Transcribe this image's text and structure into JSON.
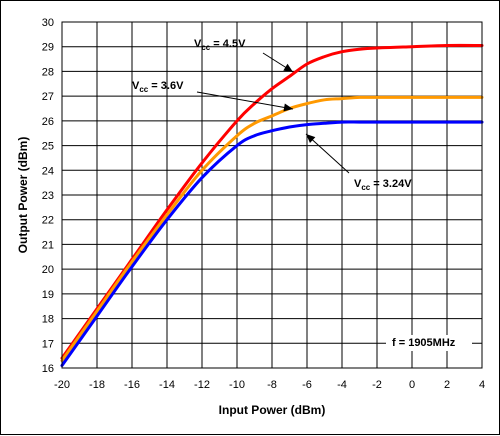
{
  "chart_data": {
    "type": "line",
    "xlabel": "Input Power (dBm)",
    "ylabel": "Output Power (dBm)",
    "xlim": [
      -20,
      4
    ],
    "ylim": [
      16,
      30
    ],
    "xticks": [
      -20,
      -18,
      -16,
      -14,
      -12,
      -10,
      -8,
      -6,
      -4,
      -2,
      0,
      2,
      4
    ],
    "yticks": [
      16,
      17,
      18,
      19,
      20,
      21,
      22,
      23,
      24,
      25,
      26,
      27,
      28,
      29,
      30
    ],
    "grid": true,
    "legend": "none",
    "series": [
      {
        "name_main": "V",
        "name_sub": "cc",
        "name_value": " = 4.5V",
        "color": "#ff0000",
        "x": [
          -20,
          -18,
          -16,
          -14,
          -12,
          -10,
          -9,
          -8,
          -7,
          -6,
          -5,
          -4,
          -3,
          -2,
          0,
          2,
          4
        ],
        "y": [
          16.4,
          18.4,
          20.4,
          22.4,
          24.3,
          26.0,
          26.7,
          27.3,
          27.8,
          28.3,
          28.6,
          28.8,
          28.9,
          28.95,
          29.0,
          29.05,
          29.05
        ]
      },
      {
        "name_main": "V",
        "name_sub": "cc",
        "name_value": " = 3.6V",
        "color": "#ff9900",
        "x": [
          -20,
          -18,
          -16,
          -14,
          -12,
          -10,
          -9,
          -8,
          -7,
          -6,
          -5,
          -4,
          -3,
          -2,
          0,
          2,
          4
        ],
        "y": [
          16.3,
          18.3,
          20.3,
          22.2,
          24.0,
          25.4,
          25.9,
          26.2,
          26.5,
          26.7,
          26.85,
          26.9,
          26.95,
          26.95,
          26.95,
          26.95,
          26.95
        ]
      },
      {
        "name_main": "V",
        "name_sub": "cc",
        "name_value": " = 3.24V",
        "color": "#0000ff",
        "x": [
          -20,
          -18,
          -16,
          -14,
          -12,
          -10,
          -9,
          -8,
          -7,
          -6,
          -5,
          -4,
          -3,
          -2,
          0,
          2,
          4
        ],
        "y": [
          16.1,
          18.1,
          20.1,
          22.0,
          23.7,
          25.0,
          25.4,
          25.6,
          25.75,
          25.85,
          25.9,
          25.95,
          25.95,
          25.95,
          25.95,
          25.95,
          25.95
        ]
      }
    ],
    "annotations": [
      {
        "text": "f = 1905MHz"
      }
    ]
  }
}
